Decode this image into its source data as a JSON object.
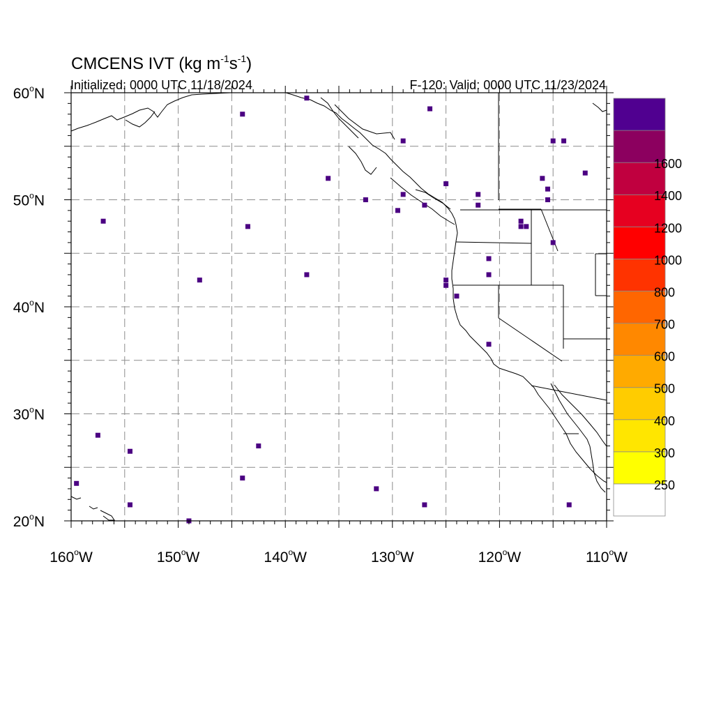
{
  "header": {
    "title_main": "CMCENS IVT (kg m",
    "title_sup1": "-1",
    "title_mid": "s",
    "title_sup2": "-1",
    "title_close": ")",
    "initialized": "Initialized: 0000 UTC 11/18/2024",
    "valid": "F-120: Valid: 0000 UTC 11/23/2024"
  },
  "map": {
    "lon_min": -160,
    "lon_max": -110,
    "lat_min": 20,
    "lat_max": 60,
    "lon_ticks": [
      {
        "value": -160,
        "deg": "160",
        "hem": "W"
      },
      {
        "value": -150,
        "deg": "150",
        "hem": "W"
      },
      {
        "value": -140,
        "deg": "140",
        "hem": "W"
      },
      {
        "value": -130,
        "deg": "130",
        "hem": "W"
      },
      {
        "value": -120,
        "deg": "120",
        "hem": "W"
      },
      {
        "value": -110,
        "deg": "110",
        "hem": "W"
      }
    ],
    "lat_ticks": [
      {
        "value": 60,
        "deg": "60",
        "hem": "N"
      },
      {
        "value": 50,
        "deg": "50",
        "hem": "N"
      },
      {
        "value": 40,
        "deg": "40",
        "hem": "N"
      },
      {
        "value": 30,
        "deg": "30",
        "hem": "N"
      },
      {
        "value": 20,
        "deg": "20",
        "hem": "N"
      }
    ],
    "grid_lon_step": 5,
    "grid_lat_step": 5,
    "grid": true,
    "feature_color": "#4b0082",
    "features": [
      [
        -138,
        59.5
      ],
      [
        -144,
        58
      ],
      [
        -126.5,
        58.5
      ],
      [
        -129,
        55.5
      ],
      [
        -115,
        55.5
      ],
      [
        -114,
        55.5
      ],
      [
        -136,
        52
      ],
      [
        -125,
        51.5
      ],
      [
        -116,
        52
      ],
      [
        -112,
        52.5
      ],
      [
        -129,
        50.5
      ],
      [
        -115.5,
        51
      ],
      [
        -132.5,
        50
      ],
      [
        -127,
        49.5
      ],
      [
        -129.5,
        49
      ],
      [
        -115.5,
        50
      ],
      [
        -122,
        50.5
      ],
      [
        -122,
        49.5
      ],
      [
        -157,
        48
      ],
      [
        -143.5,
        47.5
      ],
      [
        -118,
        48
      ],
      [
        -118,
        47.5
      ],
      [
        -117.5,
        47.5
      ],
      [
        -115,
        46
      ],
      [
        -121,
        44.5
      ],
      [
        -121,
        43
      ],
      [
        -138,
        43
      ],
      [
        -148,
        42.5
      ],
      [
        -125,
        42.5
      ],
      [
        -125,
        42
      ],
      [
        -124,
        41
      ],
      [
        -121,
        36.5
      ],
      [
        -157.5,
        28
      ],
      [
        -142.5,
        27
      ],
      [
        -154.5,
        26.5
      ],
      [
        -144,
        24
      ],
      [
        -159.5,
        23.5
      ],
      [
        -131.5,
        23
      ],
      [
        -154.5,
        21.5
      ],
      [
        -127,
        21.5
      ],
      [
        -113.5,
        21.5
      ],
      [
        -149,
        20
      ]
    ]
  },
  "colorbar": {
    "colors": [
      "#ffffff",
      "#ffff00",
      "#ffe600",
      "#ffcc00",
      "#ffaa00",
      "#ff8800",
      "#ff6600",
      "#ff3300",
      "#ff0000",
      "#e60020",
      "#c0003f",
      "#8c005f",
      "#500090"
    ],
    "labels": [
      "250",
      "300",
      "400",
      "500",
      "600",
      "700",
      "800",
      "1000",
      "1200",
      "1400",
      "1600"
    ]
  }
}
